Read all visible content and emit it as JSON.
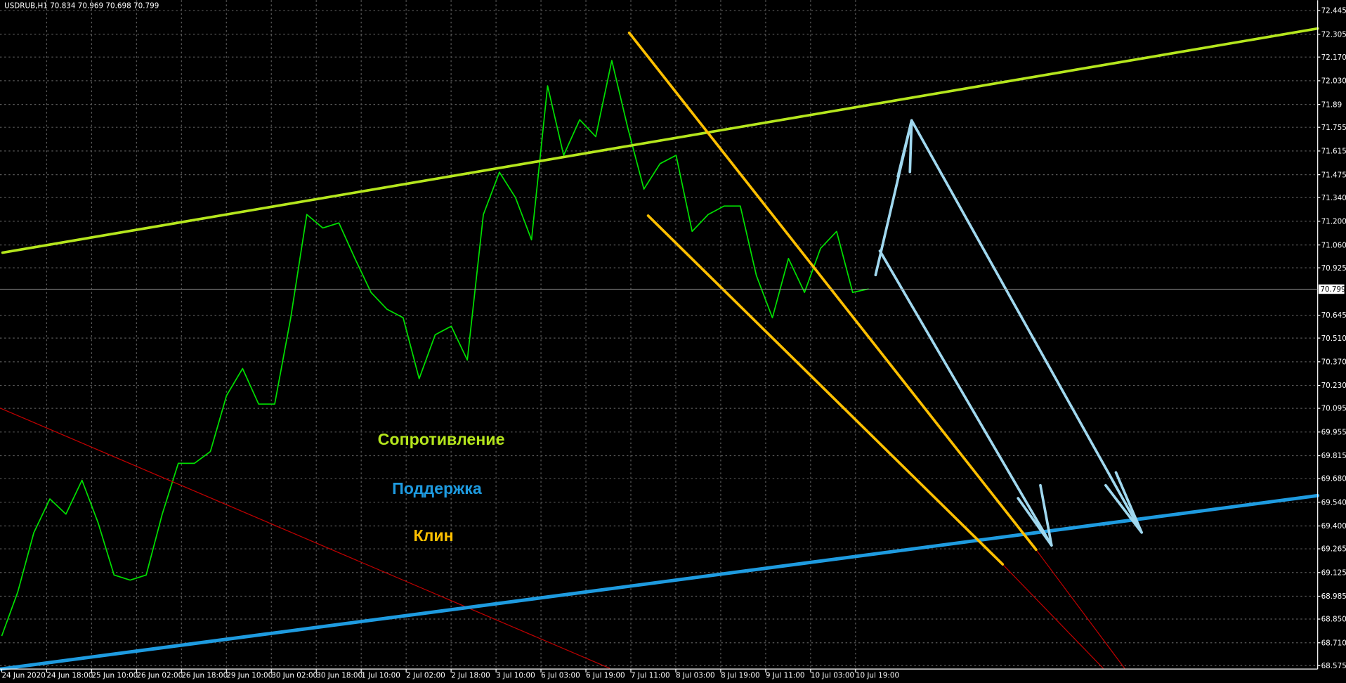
{
  "header": {
    "symbol_info": "USDRUB,H1  70.834 70.969 70.698 70.799"
  },
  "price_axis": {
    "ylim": [
      68.575,
      72.445
    ],
    "ticks": [
      72.445,
      72.305,
      {
        "value": 72.17,
        "label": "72.170"
      },
      {
        "value": 72.03,
        "label": "72.030"
      },
      71.89,
      71.755,
      71.615,
      71.475,
      {
        "value": 71.34,
        "label": "71.340"
      },
      {
        "value": 71.2,
        "label": "71.200"
      },
      {
        "value": 71.06,
        "label": "71.060"
      },
      70.925,
      70.645,
      {
        "value": 70.51,
        "label": "70.510"
      },
      {
        "value": 70.37,
        "label": "70.370"
      },
      {
        "value": 70.23,
        "label": "70.230"
      },
      70.095,
      69.955,
      69.815,
      {
        "value": 69.68,
        "label": "69.680"
      },
      {
        "value": 69.54,
        "label": "69.540"
      },
      {
        "value": 69.4,
        "label": "69.400"
      },
      69.265,
      69.125,
      68.985,
      {
        "value": 68.85,
        "label": "68.850"
      },
      {
        "value": 68.71,
        "label": "68.710"
      },
      68.575
    ],
    "current_price": 70.799
  },
  "time_axis": {
    "labels": [
      "24 Jun 2020",
      "24 Jun 18:00",
      "25 Jun 10:00",
      "26 Jun 02:00",
      "26 Jun 18:00",
      "29 Jun 10:00",
      "30 Jun 02:00",
      "30 Jun 18:00",
      "1 Jul 10:00",
      "2 Jul 02:00",
      "2 Jul 18:00",
      "3 Jul 10:00",
      "6 Jul 03:00",
      "6 Jul 19:00",
      "7 Jul 11:00",
      "8 Jul 03:00",
      "8 Jul 19:00",
      "9 Jul 11:00",
      "10 Jul 03:00",
      "10 Jul 19:00"
    ]
  },
  "price_series": {
    "color": "#00e000",
    "values": [
      68.75,
      69.01,
      69.36,
      69.56,
      69.47,
      69.67,
      69.42,
      69.11,
      69.08,
      69.11,
      69.47,
      69.77,
      69.77,
      69.84,
      70.17,
      70.33,
      70.12,
      70.12,
      70.63,
      71.24,
      71.16,
      71.19,
      70.98,
      70.78,
      70.68,
      70.63,
      70.27,
      70.53,
      70.58,
      70.38,
      71.24,
      71.49,
      71.34,
      71.09,
      72.0,
      71.59,
      71.8,
      71.7,
      72.15,
      71.75,
      71.39,
      71.54,
      71.59,
      71.14,
      71.24,
      71.29,
      71.29,
      70.88,
      70.63,
      70.98,
      70.78,
      71.04,
      71.14,
      70.78,
      70.8
    ]
  },
  "annotations": {
    "resistance": "Сопротивление",
    "support": "Поддержка",
    "wedge": "Клин"
  }
}
